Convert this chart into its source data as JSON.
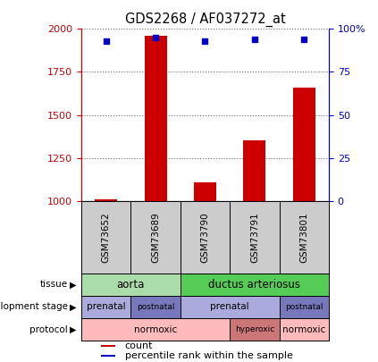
{
  "title": "GDS2268 / AF037272_at",
  "samples": [
    "GSM73652",
    "GSM73689",
    "GSM73790",
    "GSM73791",
    "GSM73801"
  ],
  "counts": [
    1010,
    1960,
    1110,
    1350,
    1660
  ],
  "percentile_ranks": [
    93,
    95,
    93,
    94,
    94
  ],
  "ylim_left": [
    1000,
    2000
  ],
  "ylim_right": [
    0,
    100
  ],
  "yticks_left": [
    1000,
    1250,
    1500,
    1750,
    2000
  ],
  "yticks_right": [
    0,
    25,
    50,
    75,
    100
  ],
  "bar_color": "#cc0000",
  "dot_color": "#0000cc",
  "tissue_segs": [
    [
      -0.5,
      1.5,
      "#aaddaa",
      "aorta",
      8.5
    ],
    [
      1.5,
      4.5,
      "#55cc55",
      "ductus arteriosus",
      8.5
    ]
  ],
  "dev_segs": [
    [
      -0.5,
      0.5,
      "#aaaadd",
      "prenatal",
      7.5
    ],
    [
      0.5,
      1.5,
      "#7777bb",
      "postnatal",
      6.5
    ],
    [
      1.5,
      3.5,
      "#aaaadd",
      "prenatal",
      7.5
    ],
    [
      3.5,
      4.5,
      "#7777bb",
      "postnatal",
      6.5
    ]
  ],
  "prot_segs": [
    [
      -0.5,
      2.5,
      "#ffbbbb",
      "normoxic",
      7.5
    ],
    [
      2.5,
      3.5,
      "#cc7777",
      "hyperoxic",
      6.5
    ],
    [
      3.5,
      4.5,
      "#ffbbbb",
      "normoxic",
      7.5
    ]
  ],
  "row_labels": [
    "tissue",
    "development stage",
    "protocol"
  ],
  "left_axis_color": "#cc0000",
  "right_axis_color": "#0000cc",
  "sample_bg_color": "#cccccc",
  "legend_count_color": "#cc0000",
  "legend_pct_color": "#0000cc"
}
